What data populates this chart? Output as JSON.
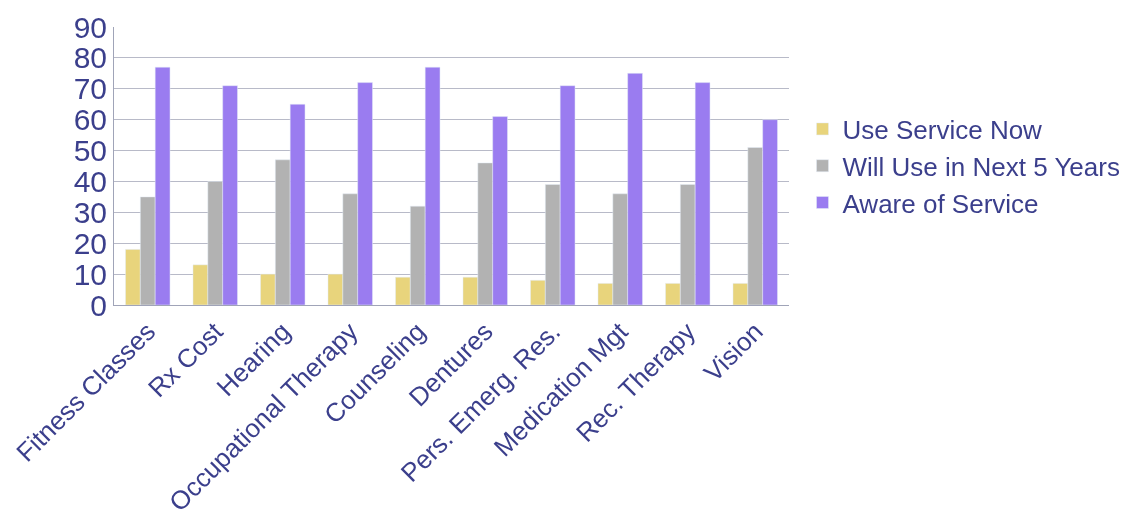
{
  "chart_data": {
    "type": "bar",
    "categories": [
      "Fitness Classes",
      "Rx Cost",
      "Hearing",
      "Occupational Therapy",
      "Counseling",
      "Dentures",
      "Pers. Emerg. Res.",
      "Medication Mgt",
      "Rec. Therapy",
      "Vision"
    ],
    "series": [
      {
        "name": "Use Service Now",
        "color": "#e8d47c",
        "values": [
          18,
          13,
          10,
          10,
          9,
          9,
          8,
          7,
          7,
          7
        ]
      },
      {
        "name": "Will Use in Next 5 Years",
        "color": "#b2b2b2",
        "values": [
          35,
          40,
          47,
          36,
          32,
          46,
          39,
          36,
          39,
          51
        ]
      },
      {
        "name": "Aware of Service",
        "color": "#9a7cf0",
        "values": [
          77,
          71,
          65,
          72,
          77,
          61,
          71,
          75,
          72,
          60
        ]
      }
    ],
    "ylim": [
      0,
      90
    ],
    "yticks": [
      0,
      10,
      20,
      30,
      40,
      50,
      60,
      70,
      80,
      90
    ],
    "grid": "y",
    "legend": "right"
  }
}
